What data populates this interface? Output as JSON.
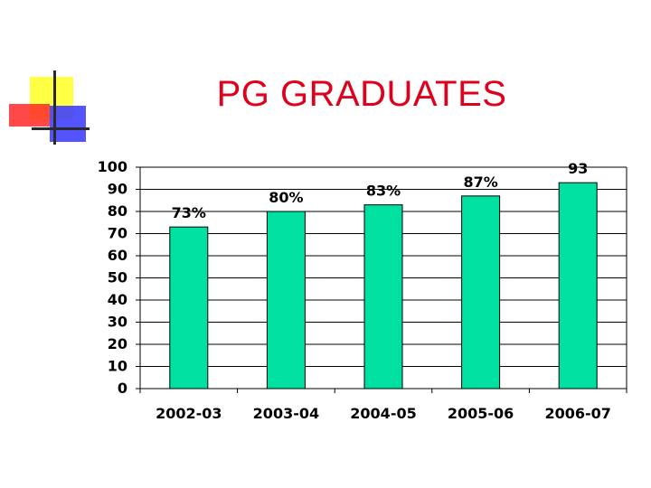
{
  "title": "PG GRADUATES",
  "colors": {
    "bar": "#00e0a0",
    "title": "#e0001b"
  },
  "logo": {
    "name": "office-squares-logo"
  },
  "chart_data": {
    "type": "bar",
    "title": "PG GRADUATES",
    "categories": [
      "2002-03",
      "2003-04",
      "2004-05",
      "2005-06",
      "2006-07"
    ],
    "values": [
      73,
      80,
      83,
      87,
      93
    ],
    "data_labels": [
      "73%",
      "80%",
      "83%",
      "87%",
      "93"
    ],
    "yticks": [
      "0",
      "10",
      "20",
      "30",
      "40",
      "50",
      "60",
      "70",
      "80",
      "90",
      "100"
    ],
    "ylim": [
      0,
      100
    ],
    "xlabel": "",
    "ylabel": "",
    "grid": true,
    "legend": "none"
  }
}
